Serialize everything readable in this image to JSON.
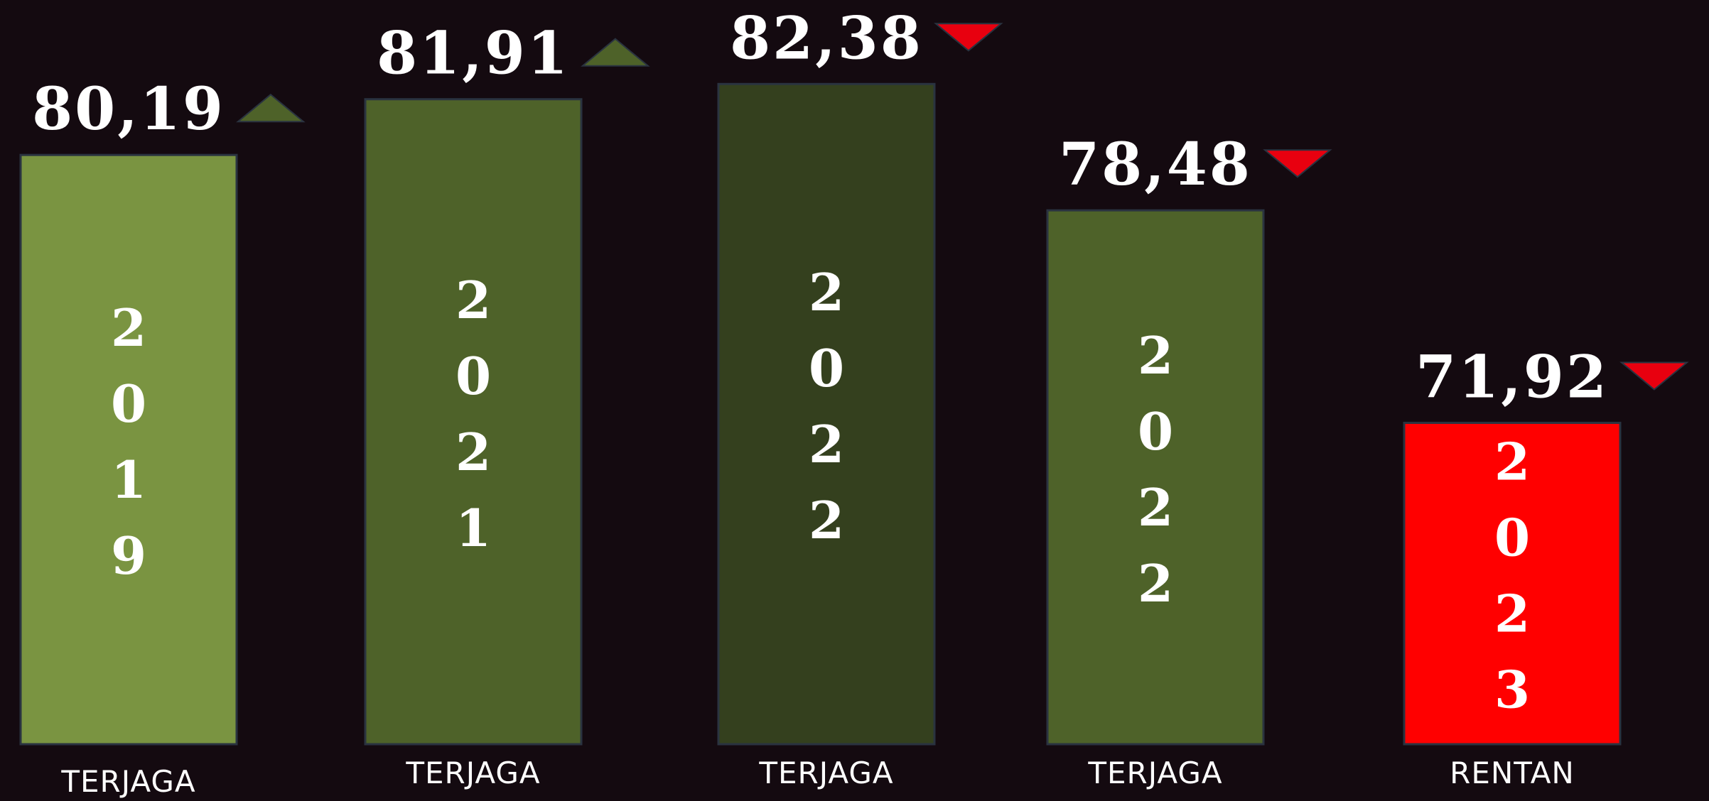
{
  "chart_data": {
    "type": "bar",
    "categories": [
      "2019",
      "2021",
      "2022",
      "2022",
      "2023"
    ],
    "values": [
      80.19,
      81.91,
      82.38,
      78.48,
      71.92
    ],
    "value_labels": [
      "80,19",
      "81,91",
      "82,38",
      "78,48",
      "71,92"
    ],
    "status": [
      "TERJAGA",
      "TERJAGA",
      "TERJAGA",
      "TERJAGA",
      "RENTAN"
    ],
    "trend": [
      "up",
      "up",
      "down",
      "down",
      "down"
    ],
    "colors": [
      "#7a9441",
      "#4e6229",
      "#34401e",
      "#4e6229",
      "#ff0000"
    ],
    "trend_colors": {
      "up": "#4e6229",
      "down": "#e8000f"
    },
    "ylim": [
      62,
      83
    ]
  }
}
